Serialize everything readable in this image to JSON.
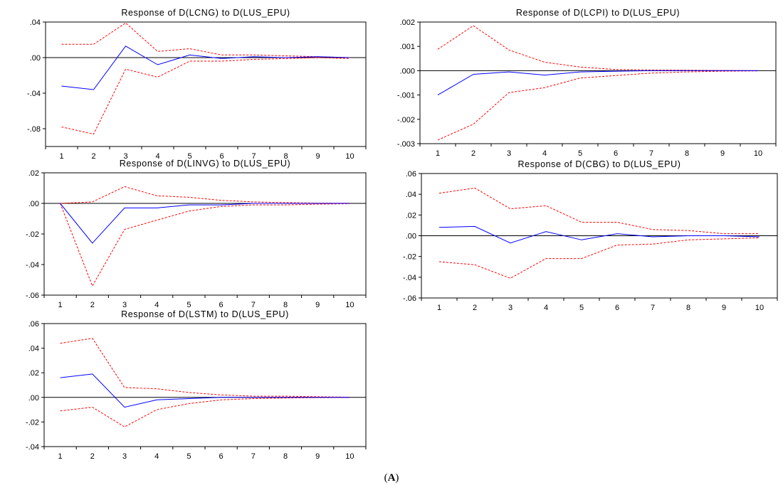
{
  "caption": {
    "open": "(",
    "letter": "A",
    "close": ")"
  },
  "colors": {
    "response": "#0000ff",
    "bands": "#ff0000",
    "axes": "#000000"
  },
  "chart_data": [
    {
      "type": "line",
      "title": "Response of D(LCNG) to D(LUS_EPU)",
      "x": [
        1,
        2,
        3,
        4,
        5,
        6,
        7,
        8,
        9,
        10
      ],
      "xticks": [
        "1",
        "2",
        "3",
        "4",
        "5",
        "6",
        "7",
        "8",
        "9",
        "10"
      ],
      "ylim": [
        -0.1,
        0.04
      ],
      "yticks": [
        0.04,
        0.0,
        -0.04,
        -0.08
      ],
      "yticklabels": [
        ".04",
        ".00",
        "-.04",
        "-.08"
      ],
      "grid": false,
      "series": [
        {
          "role": "response",
          "values": [
            -0.032,
            -0.036,
            0.013,
            -0.008,
            0.003,
            -0.001,
            0.001,
            0.0,
            0.001,
            0.0
          ]
        },
        {
          "role": "upper",
          "values": [
            0.015,
            0.015,
            0.039,
            0.007,
            0.01,
            0.003,
            0.003,
            0.002,
            0.001,
            0.0
          ]
        },
        {
          "role": "lower",
          "values": [
            -0.078,
            -0.086,
            -0.013,
            -0.022,
            -0.004,
            -0.004,
            -0.002,
            -0.001,
            0.0,
            -0.001
          ]
        }
      ]
    },
    {
      "type": "line",
      "title": "Response of D(LCPI) to D(LUS_EPU)",
      "x": [
        1,
        2,
        3,
        4,
        5,
        6,
        7,
        8,
        9,
        10
      ],
      "xticks": [
        "1",
        "2",
        "3",
        "4",
        "5",
        "6",
        "7",
        "8",
        "9",
        "10"
      ],
      "ylim": [
        -0.003,
        0.002
      ],
      "yticks": [
        0.002,
        0.001,
        0.0,
        -0.001,
        -0.002,
        -0.003
      ],
      "yticklabels": [
        ".002",
        ".001",
        ".000",
        "-.001",
        "-.002",
        "-.003"
      ],
      "grid": false,
      "series": [
        {
          "role": "response",
          "values": [
            -0.001,
            -0.00015,
            -5e-05,
            -0.00018,
            -5e-05,
            -2e-05,
            0.0,
            0.0,
            0.0,
            0.0
          ]
        },
        {
          "role": "upper",
          "values": [
            0.00088,
            0.00185,
            0.00085,
            0.00035,
            0.00015,
            5e-05,
            3e-05,
            2e-05,
            1e-05,
            0.0
          ]
        },
        {
          "role": "lower",
          "values": [
            -0.00285,
            -0.0022,
            -0.0009,
            -0.0007,
            -0.0003,
            -0.0002,
            -0.0001,
            -5e-05,
            -2e-05,
            -1e-05
          ]
        }
      ]
    },
    {
      "type": "line",
      "title": "Response of D(LINVG) to D(LUS_EPU)",
      "x": [
        1,
        2,
        3,
        4,
        5,
        6,
        7,
        8,
        9,
        10
      ],
      "xticks": [
        "1",
        "2",
        "3",
        "4",
        "5",
        "6",
        "7",
        "8",
        "9",
        "10"
      ],
      "ylim": [
        -0.06,
        0.02
      ],
      "yticks": [
        0.02,
        0.0,
        -0.02,
        -0.04,
        -0.06
      ],
      "yticklabels": [
        ".02",
        ".00",
        "-.02",
        "-.04",
        "-.06"
      ],
      "grid": false,
      "series": [
        {
          "role": "response",
          "values": [
            0.0,
            -0.026,
            -0.003,
            -0.003,
            -0.001,
            -0.001,
            0.0,
            0.0,
            0.0,
            0.0
          ]
        },
        {
          "role": "upper",
          "values": [
            0.0,
            0.001,
            0.011,
            0.005,
            0.004,
            0.002,
            0.001,
            0.0005,
            0.0002,
            0.0001
          ]
        },
        {
          "role": "lower",
          "values": [
            0.0,
            -0.054,
            -0.017,
            -0.011,
            -0.005,
            -0.002,
            -0.001,
            -0.001,
            -0.0005,
            -0.0002
          ]
        }
      ]
    },
    {
      "type": "line",
      "title": "Response of D(CBG) to D(LUS_EPU)",
      "x": [
        1,
        2,
        3,
        4,
        5,
        6,
        7,
        8,
        9,
        10
      ],
      "xticks": [
        "1",
        "2",
        "3",
        "4",
        "5",
        "6",
        "7",
        "8",
        "9",
        "10"
      ],
      "ylim": [
        -0.06,
        0.06
      ],
      "yticks": [
        0.06,
        0.04,
        0.02,
        0.0,
        -0.02,
        -0.04,
        -0.06
      ],
      "yticklabels": [
        ".06",
        ".04",
        ".02",
        ".00",
        "-.02",
        "-.04",
        "-.06"
      ],
      "grid": false,
      "series": [
        {
          "role": "response",
          "values": [
            0.008,
            0.009,
            -0.007,
            0.004,
            -0.004,
            0.002,
            -0.001,
            0.0,
            0.0,
            -0.001
          ]
        },
        {
          "role": "upper",
          "values": [
            0.041,
            0.046,
            0.026,
            0.029,
            0.013,
            0.013,
            0.006,
            0.005,
            0.002,
            0.002
          ]
        },
        {
          "role": "lower",
          "values": [
            -0.025,
            -0.028,
            -0.041,
            -0.022,
            -0.022,
            -0.009,
            -0.008,
            -0.004,
            -0.003,
            -0.002
          ]
        }
      ]
    },
    {
      "type": "line",
      "title": "Response of D(LSTM) to D(LUS_EPU)",
      "x": [
        1,
        2,
        3,
        4,
        5,
        6,
        7,
        8,
        9,
        10
      ],
      "xticks": [
        "1",
        "2",
        "3",
        "4",
        "5",
        "6",
        "7",
        "8",
        "9",
        "10"
      ],
      "ylim": [
        -0.04,
        0.06
      ],
      "yticks": [
        0.06,
        0.04,
        0.02,
        0.0,
        -0.02,
        -0.04
      ],
      "yticklabels": [
        ".06",
        ".04",
        ".02",
        ".00",
        "-.02",
        "-.04"
      ],
      "grid": false,
      "series": [
        {
          "role": "response",
          "values": [
            0.016,
            0.019,
            -0.008,
            -0.002,
            -0.001,
            0.0,
            0.0,
            0.0,
            0.0,
            0.0
          ]
        },
        {
          "role": "upper",
          "values": [
            0.044,
            0.048,
            0.008,
            0.007,
            0.004,
            0.002,
            0.001,
            0.001,
            0.0005,
            0.0002
          ]
        },
        {
          "role": "lower",
          "values": [
            -0.011,
            -0.008,
            -0.024,
            -0.01,
            -0.005,
            -0.002,
            -0.001,
            -0.0005,
            -0.0002,
            -0.0001
          ]
        }
      ]
    }
  ]
}
